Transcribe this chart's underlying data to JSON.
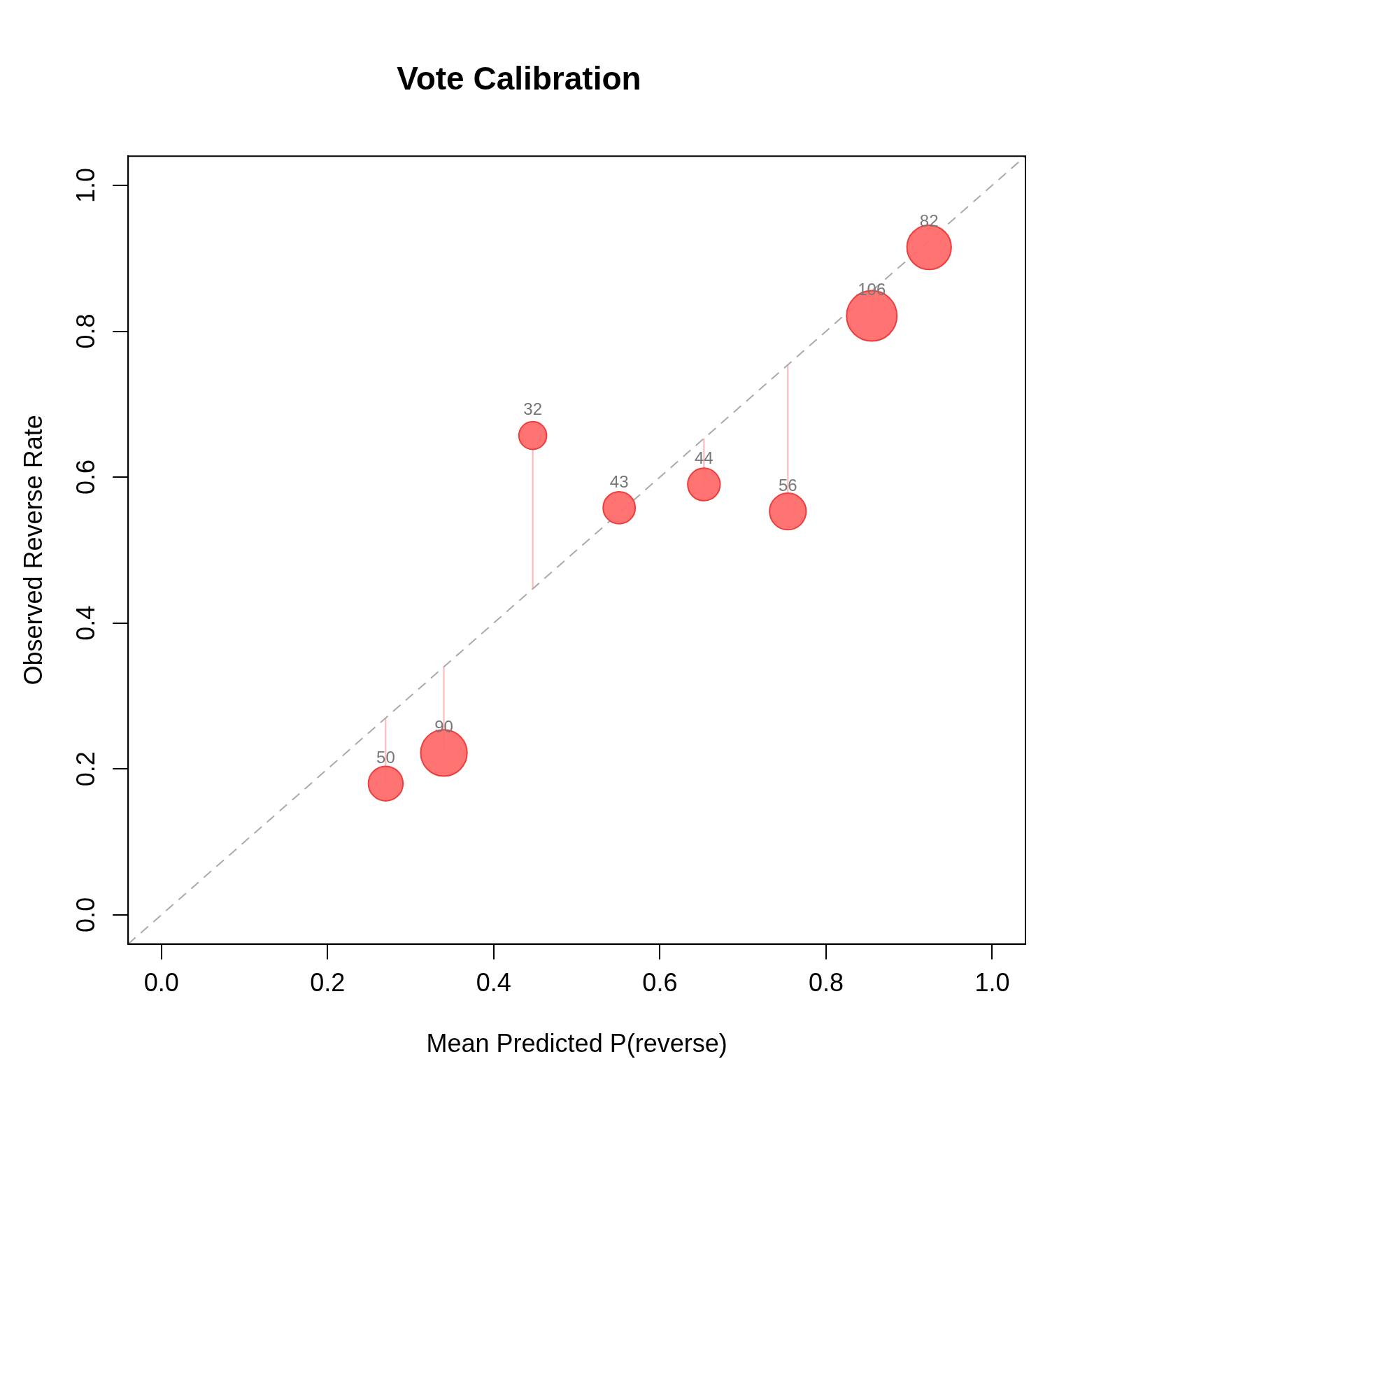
{
  "chart_data": {
    "type": "bubble",
    "title": "Vote Calibration",
    "xlabel": "Mean Predicted P(reverse)",
    "ylabel": "Observed Reverse Rate",
    "xlim": [
      -0.04,
      1.04
    ],
    "ylim": [
      -0.04,
      1.04
    ],
    "xticks": [
      {
        "value": 0,
        "label": "0.0"
      },
      0.2,
      0.4,
      0.6,
      0.8,
      {
        "value": 1,
        "label": "1.0"
      }
    ],
    "yticks": [
      {
        "value": 0,
        "label": "0.0"
      },
      0.2,
      0.4,
      0.6,
      0.8,
      {
        "value": 1,
        "label": "1.0"
      }
    ],
    "series": [
      {
        "color": "#ff6b6b",
        "x": [
          0.27,
          0.34,
          0.447,
          0.551,
          0.653,
          0.754,
          0.855,
          0.924
        ],
        "values": [
          0.18,
          0.222,
          0.657,
          0.558,
          0.59,
          0.553,
          0.821,
          0.915
        ],
        "sizes": [
          0.472,
          0.849,
          0.302,
          0.406,
          0.415,
          0.528,
          1,
          0.774
        ],
        "errors": [
          [
            0.18,
            0.27
          ],
          [
            0.222,
            0.34
          ],
          [
            0.447,
            0.657
          ],
          null,
          [
            0.59,
            0.653
          ],
          [
            0.553,
            0.754
          ],
          [
            0.821,
            0.855
          ],
          null
        ]
      },
      {
        "type": "line",
        "color": "#aaaaaa",
        "x": [
          -0.04,
          1.04
        ],
        "values": [
          -0.04,
          1.04
        ],
        "line_style": "dashed",
        "marker": "none"
      }
    ],
    "annotations": [
      {
        "text": "50",
        "x": 0.27,
        "y": 0.18
      },
      {
        "text": "90",
        "x": 0.34,
        "y": 0.222
      },
      {
        "text": "32",
        "x": 0.447,
        "y": 0.657
      },
      {
        "text": "43",
        "x": 0.551,
        "y": 0.558
      },
      {
        "text": "44",
        "x": 0.653,
        "y": 0.59
      },
      {
        "text": "56",
        "x": 0.754,
        "y": 0.553
      },
      {
        "text": "106",
        "x": 0.855,
        "y": 0.821
      },
      {
        "text": "82",
        "x": 0.924,
        "y": 0.915
      }
    ],
    "legend": false
  }
}
